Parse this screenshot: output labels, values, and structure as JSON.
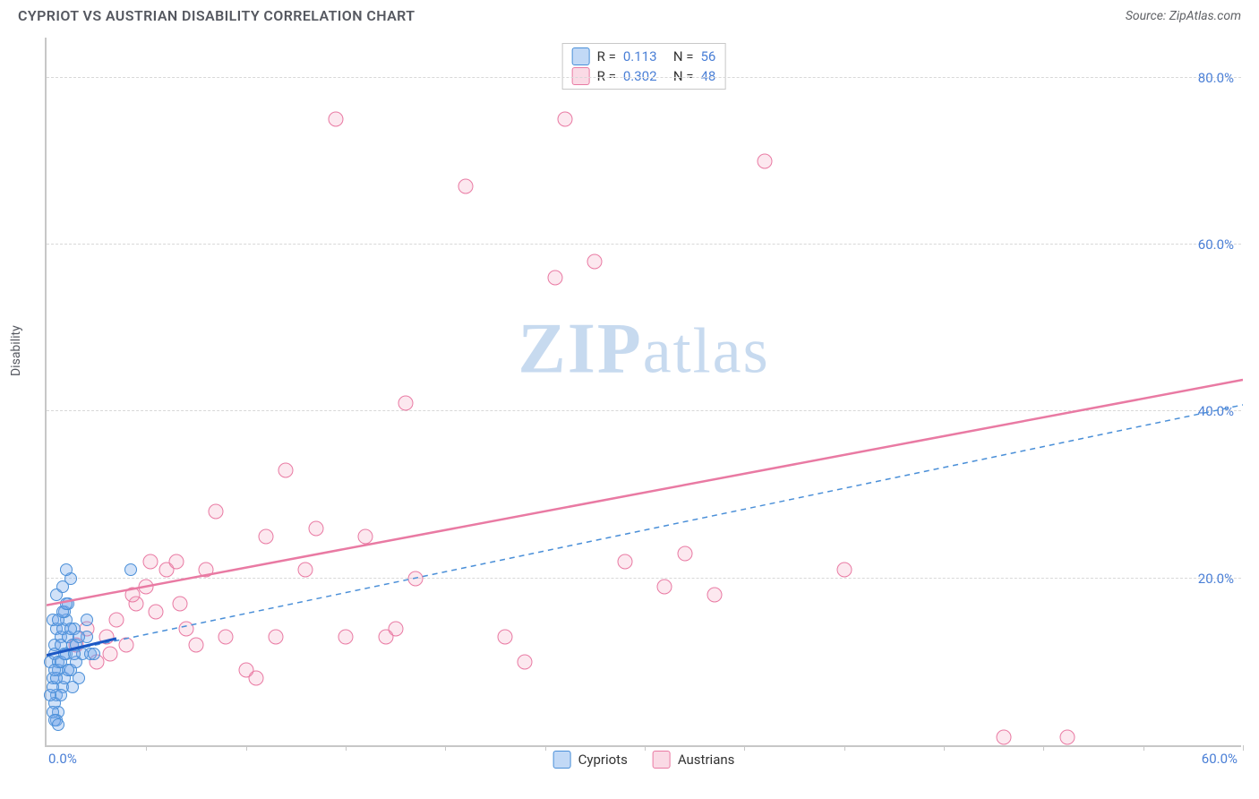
{
  "header": {
    "title": "CYPRIOT VS AUSTRIAN DISABILITY CORRELATION CHART",
    "source": "Source: ZipAtlas.com"
  },
  "chart": {
    "type": "scatter",
    "ylabel": "Disability",
    "watermark_a": "ZIP",
    "watermark_b": "atlas",
    "xlim": [
      0,
      60
    ],
    "ylim": [
      0,
      85
    ],
    "xtick_positions": [
      0,
      5,
      10,
      15,
      20,
      25,
      30,
      35,
      40,
      45,
      50,
      55,
      60
    ],
    "yticks": [
      20,
      40,
      60,
      80
    ],
    "ytick_labels": [
      "20.0%",
      "40.0%",
      "60.0%",
      "80.0%"
    ],
    "x0_label": "0.0%",
    "xend_label": "60.0%",
    "background_color": "#ffffff",
    "grid_color": "#d8d8d8",
    "axis_color": "#c7c7c7",
    "tick_label_color": "#4a7fd6",
    "series": {
      "cypriots": {
        "label": "Cypriots",
        "color_fill": "rgba(120,170,235,0.35)",
        "color_stroke": "#4a8fd8",
        "marker_size": 14,
        "R": "0.113",
        "N": "56",
        "trend": {
          "x1": 0,
          "y1": 11,
          "x2": 60,
          "y2": 41,
          "dash": "6 5",
          "stroke_w": 1.5,
          "short_solid": {
            "x1": 0,
            "y1": 11,
            "x2": 3.5,
            "y2": 13
          }
        },
        "data": [
          [
            0.2,
            10
          ],
          [
            0.3,
            8
          ],
          [
            0.4,
            12
          ],
          [
            0.5,
            14
          ],
          [
            0.6,
            9
          ],
          [
            0.4,
            11
          ],
          [
            0.7,
            13
          ],
          [
            0.8,
            7
          ],
          [
            0.3,
            15
          ],
          [
            0.5,
            6
          ],
          [
            0.6,
            10
          ],
          [
            0.7,
            12
          ],
          [
            0.9,
            8
          ],
          [
            1.0,
            11
          ],
          [
            1.1,
            13
          ],
          [
            1.2,
            9
          ],
          [
            0.4,
            5
          ],
          [
            0.6,
            4
          ],
          [
            0.5,
            3
          ],
          [
            0.7,
            6
          ],
          [
            0.8,
            14
          ],
          [
            1.0,
            15
          ],
          [
            1.3,
            12
          ],
          [
            1.5,
            10
          ],
          [
            1.6,
            8
          ],
          [
            1.8,
            11
          ],
          [
            2.0,
            13
          ],
          [
            0.9,
            16
          ],
          [
            1.1,
            17
          ],
          [
            1.4,
            14
          ],
          [
            0.5,
            18
          ],
          [
            0.8,
            19
          ],
          [
            1.2,
            20
          ],
          [
            1.0,
            21
          ],
          [
            0.3,
            4
          ],
          [
            0.4,
            3
          ],
          [
            0.6,
            2.5
          ],
          [
            0.2,
            6
          ],
          [
            0.3,
            7
          ],
          [
            0.5,
            8
          ],
          [
            0.4,
            9
          ],
          [
            0.7,
            10
          ],
          [
            0.9,
            11
          ],
          [
            1.1,
            9
          ],
          [
            1.3,
            7
          ],
          [
            1.5,
            12
          ],
          [
            0.6,
            15
          ],
          [
            0.8,
            16
          ],
          [
            1.0,
            17
          ],
          [
            1.2,
            14
          ],
          [
            1.4,
            11
          ],
          [
            1.6,
            13
          ],
          [
            4.2,
            21
          ],
          [
            2.0,
            15
          ],
          [
            2.2,
            11
          ],
          [
            2.4,
            11
          ]
        ]
      },
      "austrians": {
        "label": "Austrians",
        "color_fill": "rgba(240,150,180,0.22)",
        "color_stroke": "#e97aa3",
        "marker_size": 17,
        "R": "0.302",
        "N": "48",
        "trend": {
          "x1": 0,
          "y1": 17,
          "x2": 60,
          "y2": 44,
          "dash": "",
          "stroke_w": 2.5
        },
        "data": [
          [
            1.5,
            12
          ],
          [
            2.0,
            14
          ],
          [
            2.5,
            10
          ],
          [
            3.0,
            13
          ],
          [
            3.5,
            15
          ],
          [
            4.0,
            12
          ],
          [
            4.5,
            17
          ],
          [
            5.0,
            19
          ],
          [
            5.5,
            16
          ],
          [
            6.0,
            21
          ],
          [
            6.5,
            22
          ],
          [
            7.0,
            14
          ],
          [
            8.0,
            21
          ],
          [
            8.5,
            28
          ],
          [
            9.0,
            13
          ],
          [
            10.5,
            8
          ],
          [
            11.0,
            25
          ],
          [
            11.5,
            13
          ],
          [
            12.0,
            33
          ],
          [
            13.0,
            21
          ],
          [
            13.5,
            26
          ],
          [
            14.5,
            75
          ],
          [
            15.0,
            13
          ],
          [
            16.0,
            25
          ],
          [
            17.0,
            13
          ],
          [
            17.5,
            14
          ],
          [
            18.0,
            41
          ],
          [
            18.5,
            20
          ],
          [
            21.0,
            67
          ],
          [
            23.0,
            13
          ],
          [
            24.0,
            10
          ],
          [
            25.5,
            56
          ],
          [
            26.0,
            75
          ],
          [
            27.5,
            58
          ],
          [
            29.0,
            22
          ],
          [
            31.0,
            19
          ],
          [
            32.0,
            23
          ],
          [
            33.5,
            18
          ],
          [
            36.0,
            70
          ],
          [
            40.0,
            21
          ],
          [
            48.0,
            1
          ],
          [
            51.2,
            1
          ],
          [
            3.2,
            11
          ],
          [
            4.3,
            18
          ],
          [
            5.2,
            22
          ],
          [
            6.7,
            17
          ],
          [
            7.5,
            12
          ],
          [
            10.0,
            9
          ]
        ]
      }
    },
    "stats_labels": {
      "R": "R =",
      "N": "N ="
    },
    "bottom_legend": [
      "Cypriots",
      "Austrians"
    ]
  }
}
